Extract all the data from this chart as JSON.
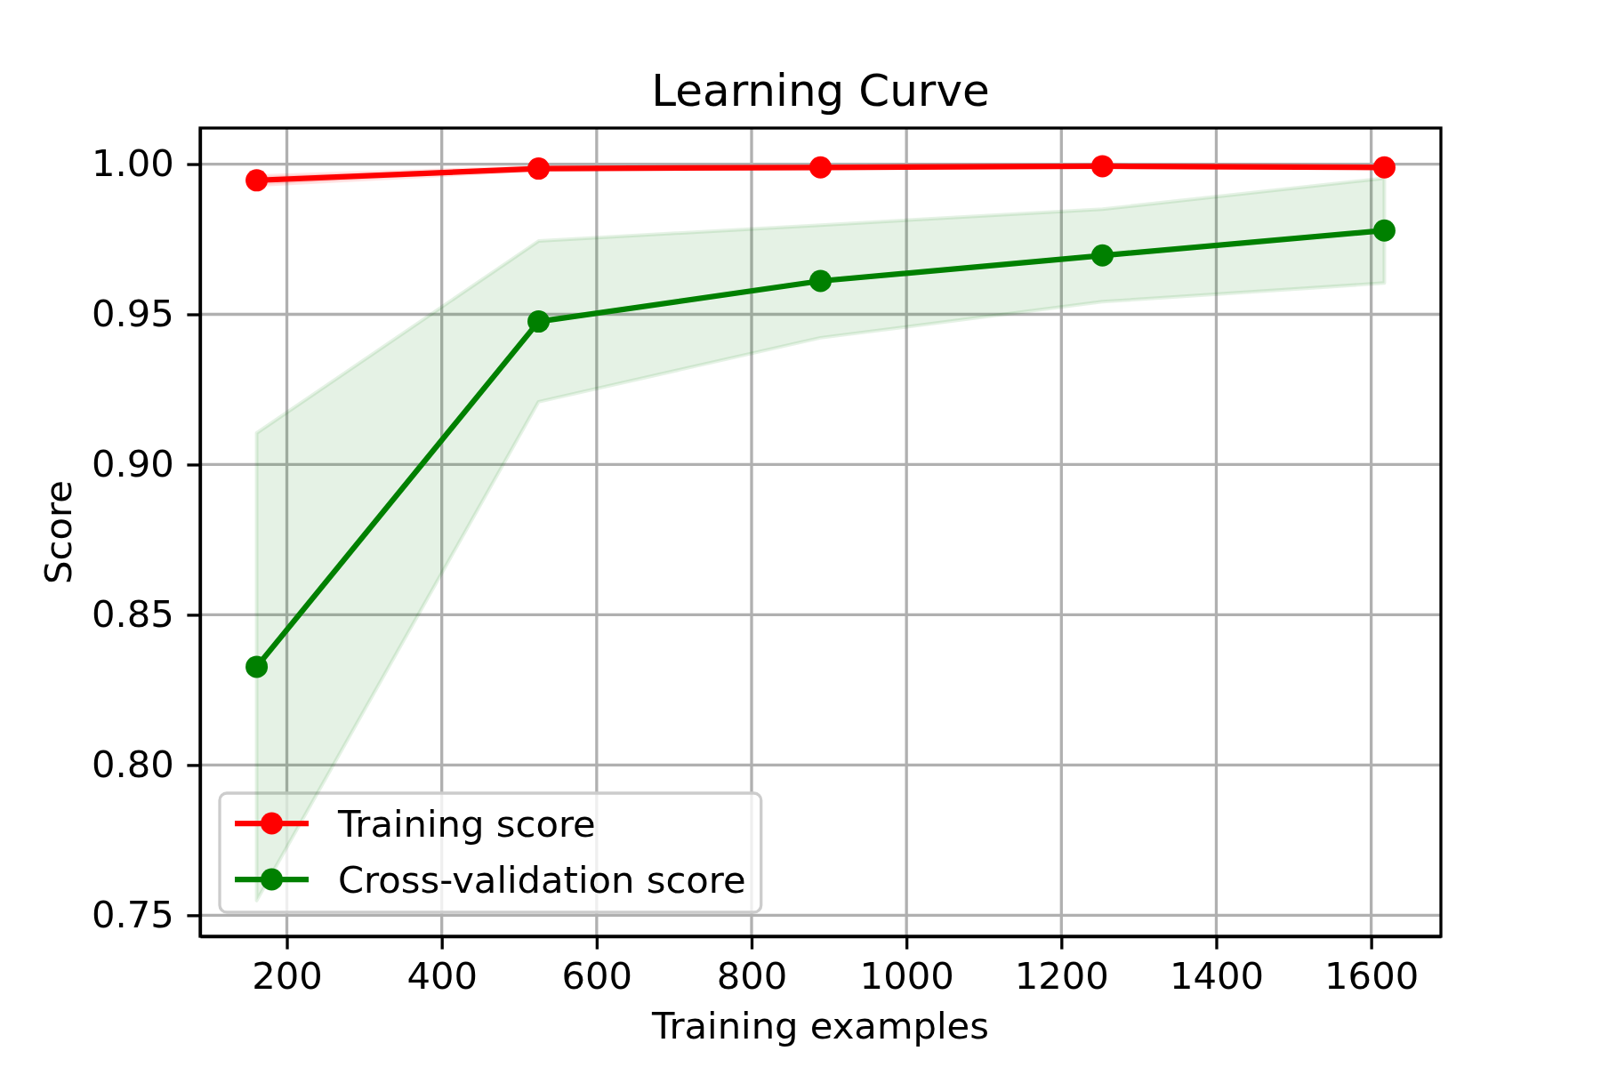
{
  "chart_data": {
    "type": "line",
    "title": "Learning Curve",
    "xlabel": "Training examples",
    "ylabel": "Score",
    "x": [
      161,
      525,
      889,
      1253,
      1617
    ],
    "series": [
      {
        "name": "Training score",
        "color": "#ff0000",
        "values": [
          0.9946,
          0.9985,
          0.9989,
          0.9993,
          0.9989
        ],
        "lower": [
          0.993,
          0.998,
          0.9985,
          0.999,
          0.9985
        ],
        "upper": [
          0.996,
          0.999,
          0.9993,
          0.9996,
          0.9993
        ]
      },
      {
        "name": "Cross-validation score",
        "color": "#008000",
        "values": [
          0.8327,
          0.9476,
          0.9611,
          0.9696,
          0.9779
        ],
        "lower": [
          0.7549,
          0.9209,
          0.9422,
          0.9542,
          0.9604
        ],
        "upper": [
          0.9105,
          0.9744,
          0.9797,
          0.985,
          0.9953
        ]
      }
    ],
    "xlim": [
      88,
      1690
    ],
    "ylim": [
      0.743,
      1.012
    ],
    "xticks": [
      200,
      400,
      600,
      800,
      1000,
      1200,
      1400,
      1600
    ],
    "yticks": [
      0.75,
      {
        "value": 0.8,
        "label": "0.80"
      },
      0.85,
      {
        "value": 0.9,
        "label": "0.90"
      },
      0.95,
      {
        "value": 1,
        "label": "1.00"
      }
    ],
    "grid": true,
    "legend": "lower left",
    "marker": "circle"
  }
}
